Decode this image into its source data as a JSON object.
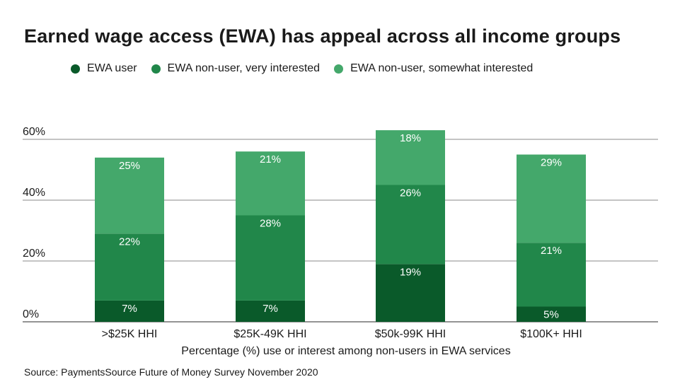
{
  "chart_data": {
    "type": "bar",
    "stacked": true,
    "title": "Earned wage access (EWA) has appeal across all income groups",
    "xlabel": "Percentage (%) use or interest among non-users in EWA services",
    "ylabel": "",
    "ylim": [
      0,
      60
    ],
    "yticks": [
      0,
      20,
      40,
      60
    ],
    "ytick_labels": [
      "0%",
      "20%",
      "40%",
      "60%"
    ],
    "categories": [
      ">$25K HHI",
      "$25K-49K HHI",
      "$50k-99K HHI",
      "$100K+ HHI"
    ],
    "series": [
      {
        "name": "EWA user",
        "color": "#0a5a2a",
        "values": [
          7,
          7,
          19,
          5
        ],
        "labels": [
          "7%",
          "7%",
          "19%",
          "5%"
        ]
      },
      {
        "name": "EWA non-user, very interested",
        "color": "#21874a",
        "values": [
          22,
          28,
          26,
          21
        ],
        "labels": [
          "22%",
          "28%",
          "26%",
          "21%"
        ]
      },
      {
        "name": "EWA non-user, somewhat interested",
        "color": "#44a86b",
        "values": [
          25,
          21,
          18,
          29
        ],
        "labels": [
          "25%",
          "21%",
          "18%",
          "29%"
        ]
      }
    ],
    "legend_position": "top-left",
    "grid": true
  },
  "source": "Source: PaymentsSource Future of Money Survey November 2020"
}
